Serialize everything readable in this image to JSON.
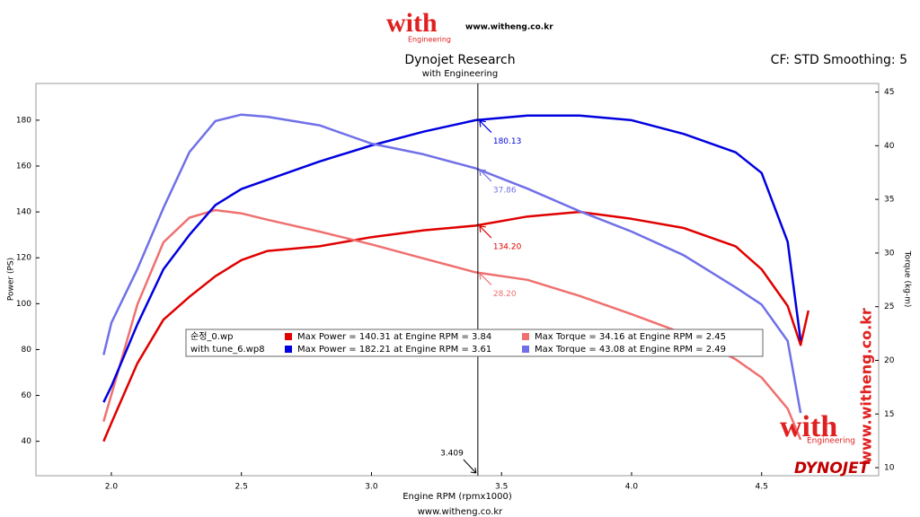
{
  "chart_data": {
    "type": "line",
    "title": "Dynojet Research",
    "subtitle": "with Engineering",
    "settings_note": "CF: STD Smoothing: 5",
    "x_label": "Engine RPM (rpmx1000)",
    "y_label": "Power (PS)",
    "y2_label": "Torque (kg-m)",
    "footer": "www.witheng.co.kr",
    "branding": {
      "logo": "with",
      "logo_sub": "Engineering",
      "logo_url": "www.witheng.co.kr",
      "side_url": "www.witheng.co.kr",
      "maker": "DYNOJET"
    },
    "runs": [
      "순정_0.wp",
      "with tune_6.wp8"
    ],
    "xlim": [
      1.71,
      4.95
    ],
    "xticks": [
      {
        "value": 2,
        "label": "2.0"
      },
      2.5,
      {
        "value": 3,
        "label": "3.0"
      },
      3.5,
      {
        "value": 4,
        "label": "4.0"
      },
      4.5
    ],
    "ylim": [
      25,
      196
    ],
    "yticks": [
      40,
      60,
      80,
      100,
      120,
      140,
      160,
      180
    ],
    "y2lim": [
      9.25,
      45.8
    ],
    "y2ticks": [
      10,
      15,
      20,
      25,
      30,
      35,
      40,
      45
    ],
    "cursor": {
      "x": 3.409
    },
    "x": [
      1.97,
      2.0,
      2.1,
      2.2,
      2.3,
      2.4,
      2.5,
      2.6,
      2.8,
      3.0,
      3.2,
      3.4,
      3.6,
      3.8,
      4.0,
      4.2,
      4.4,
      4.5,
      4.6,
      4.65,
      4.68
    ],
    "series": [
      {
        "name": "Max Power = 140.31 at Engine RPM = 3.84",
        "color": "#e00000",
        "values": [
          40,
          48,
          74,
          93,
          103,
          112,
          119,
          123,
          125,
          129,
          132,
          134,
          138,
          140,
          137,
          133,
          125,
          115,
          99,
          82,
          97
        ],
        "cursor_value": 134.2,
        "cursor_label": "134.20"
      },
      {
        "name": "Max Torque = 34.16 at Engine RPM = 2.45",
        "color": "#f07070",
        "axis": "y2",
        "values": [
          14.3,
          16.8,
          25.2,
          31.0,
          33.3,
          34.0,
          33.7,
          33.1,
          32.0,
          30.8,
          29.5,
          28.2,
          27.5,
          26.0,
          24.3,
          22.5,
          20.1,
          18.4,
          15.5,
          12.6,
          null
        ],
        "cursor_value": 28.2,
        "cursor_label": "28.20"
      },
      {
        "name": "Max Power = 182.21 at Engine RPM = 3.61",
        "color": "#0000e0",
        "values": [
          57,
          64,
          91,
          115,
          130,
          143,
          150,
          154,
          162,
          169,
          175,
          180,
          182,
          182,
          180,
          174,
          166,
          157,
          127,
          84,
          null
        ],
        "cursor_value": 180.13,
        "cursor_label": "180.13"
      },
      {
        "name": "Max Torque = 43.08 at Engine RPM = 2.49",
        "color": "#7070e8",
        "axis": "y2",
        "values": [
          20.5,
          23.5,
          28.5,
          34.2,
          39.4,
          42.3,
          42.9,
          42.7,
          41.9,
          40.2,
          39.2,
          37.9,
          36.0,
          33.9,
          32.0,
          29.8,
          26.8,
          25.2,
          21.8,
          15.1,
          null
        ],
        "cursor_value": 37.86,
        "cursor_label": "37.86"
      }
    ]
  }
}
